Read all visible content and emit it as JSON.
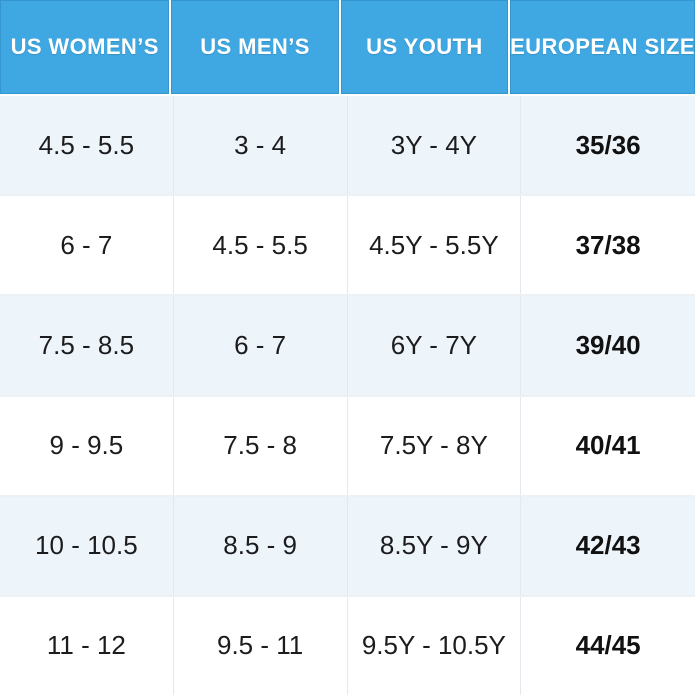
{
  "chart_data": {
    "type": "table",
    "columns": [
      "US WOMEN’S",
      "US MEN’S",
      "US YOUTH",
      "EUROPEAN SIZE"
    ],
    "rows": [
      [
        "4.5 - 5.5",
        "3 - 4",
        "3Y - 4Y",
        "35/36"
      ],
      [
        "6 - 7",
        "4.5 - 5.5",
        "4.5Y - 5.5Y",
        "37/38"
      ],
      [
        "7.5 - 8.5",
        "6 - 7",
        "6Y - 7Y",
        "39/40"
      ],
      [
        "9 - 9.5",
        "7.5 - 8",
        "7.5Y - 8Y",
        "40/41"
      ],
      [
        "10 - 10.5",
        "8.5 - 9",
        "8.5Y - 9Y",
        "42/43"
      ],
      [
        "11 - 12",
        "9.5 - 11",
        "9.5Y - 10.5Y",
        "44/45"
      ]
    ],
    "layout": {
      "header_bg": "#3FA7E1",
      "header_text_color": "#FFFFFF",
      "alt_row_bg": "#EDF5FB",
      "row_bg": "#FFFFFF",
      "body_text_color": "#1C1C1E",
      "emphasis_column": "EUROPEAN SIZE",
      "grid": "light separators, alternating row shading"
    }
  }
}
